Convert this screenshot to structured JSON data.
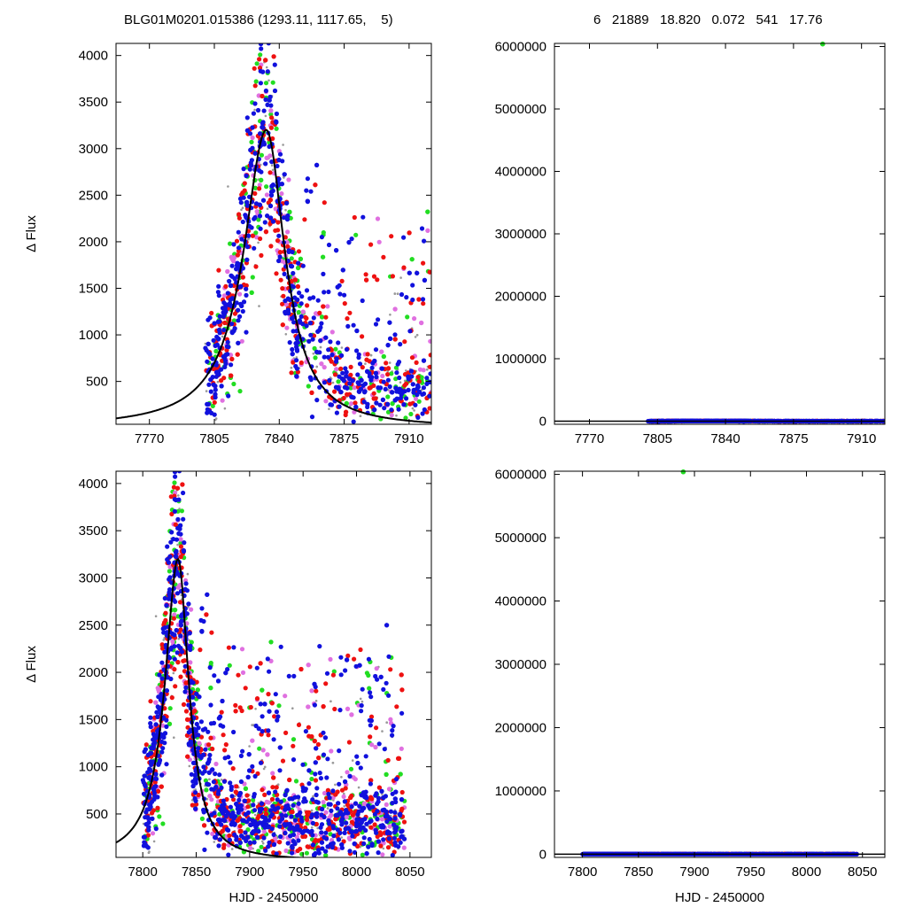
{
  "header": {
    "left": "BLG01M0201.015386 (1293.11, 1117.65,    5)",
    "right": "6   21889   18.820   0.072   541   17.76"
  },
  "colors": {
    "red": "#ee1111",
    "blue": "#1111dd",
    "green": "#22dd22",
    "magenta": "#e070e0",
    "gray": "#999999",
    "model": "#000000"
  },
  "chart_data": [
    {
      "type": "scatter",
      "panel": "top-left",
      "title": "",
      "xlabel": "",
      "ylabel": "Δ Flux",
      "xlim": [
        7752,
        7922
      ],
      "ylim": [
        40,
        4130
      ],
      "xticks": [
        7770,
        7805,
        7840,
        7875,
        7910
      ],
      "yticks": [
        500,
        1000,
        1500,
        2000,
        2500,
        3000,
        3500,
        4000
      ],
      "model_curve": {
        "peak_time": 7833,
        "peak_flux": 3200,
        "rise_scale": 11,
        "fall_scale": 9,
        "baseline": 0
      },
      "series": [
        {
          "color_key": "blue",
          "description": "dense points following peak, then scattered 0–1500 from 7850–7920"
        },
        {
          "color_key": "red"
        },
        {
          "color_key": "magenta"
        },
        {
          "color_key": "green"
        },
        {
          "color_key": "gray"
        }
      ]
    },
    {
      "type": "scatter",
      "panel": "top-right",
      "title": "",
      "xlabel": "",
      "ylabel": "",
      "xlim": [
        7752,
        7922
      ],
      "ylim": [
        -50000,
        6050000
      ],
      "xticks": [
        7770,
        7805,
        7840,
        7875,
        7910
      ],
      "yticks": [
        0,
        1000000,
        2000000,
        3000000,
        4000000,
        5000000,
        6000000
      ],
      "outlier": {
        "x": 7890,
        "y": 6040000,
        "color_key": "green"
      }
    },
    {
      "type": "scatter",
      "panel": "bottom-left",
      "title": "",
      "xlabel": "HJD - 2450000",
      "ylabel": "Δ Flux",
      "xlim": [
        7775,
        8070
      ],
      "ylim": [
        40,
        4130
      ],
      "xticks": [
        7800,
        7850,
        7900,
        7950,
        8000,
        8050
      ],
      "yticks": [
        500,
        1000,
        1500,
        2000,
        2500,
        3000,
        3500,
        4000
      ],
      "model_curve": {
        "peak_time": 7833,
        "peak_flux": 3200,
        "rise_scale": 11,
        "fall_scale": 9,
        "baseline": 0
      }
    },
    {
      "type": "scatter",
      "panel": "bottom-right",
      "title": "",
      "xlabel": "HJD - 2450000",
      "ylabel": "",
      "xlim": [
        7775,
        8070
      ],
      "ylim": [
        -50000,
        6050000
      ],
      "xticks": [
        7800,
        7850,
        7900,
        7950,
        8000,
        8050
      ],
      "yticks": [
        0,
        1000000,
        2000000,
        3000000,
        4000000,
        5000000,
        6000000
      ],
      "outlier": {
        "x": 7890,
        "y": 6040000,
        "color_key": "green"
      }
    }
  ]
}
